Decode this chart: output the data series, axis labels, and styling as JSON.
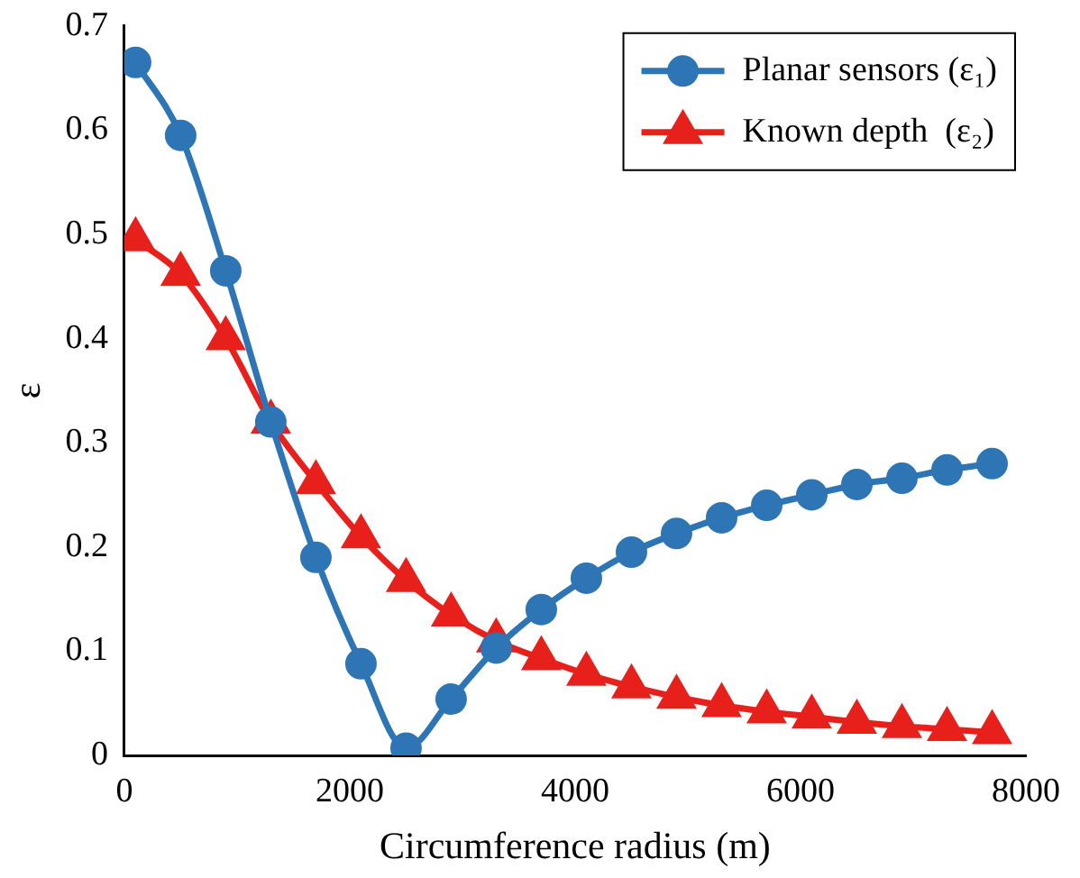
{
  "chart_data": {
    "type": "line",
    "xlabel": "Circumference radius (m)",
    "ylabel": "ε",
    "x": [
      100,
      500,
      900,
      1300,
      1700,
      2100,
      2500,
      2900,
      3300,
      3700,
      4100,
      4500,
      4900,
      5300,
      5700,
      6100,
      6500,
      6900,
      7300,
      7700
    ],
    "series": [
      {
        "name": "Planar sensors (ε₁)",
        "color": "#2e75b6",
        "marker": "circle",
        "values": [
          0.665,
          0.595,
          0.465,
          0.32,
          0.19,
          0.088,
          0.007,
          0.054,
          0.103,
          0.14,
          0.17,
          0.195,
          0.213,
          0.228,
          0.24,
          0.25,
          0.26,
          0.266,
          0.274,
          0.28
        ]
      },
      {
        "name": "Known depth  (ε₂)",
        "color": "#e8201c",
        "marker": "triangle",
        "values": [
          0.495,
          0.462,
          0.4,
          0.32,
          0.262,
          0.21,
          0.168,
          0.135,
          0.11,
          0.093,
          0.078,
          0.066,
          0.056,
          0.048,
          0.042,
          0.037,
          0.032,
          0.028,
          0.025,
          0.022
        ]
      }
    ],
    "xlim": [
      0,
      8000
    ],
    "xticks": [
      0,
      2000,
      4000,
      6000,
      8000
    ],
    "ylim": [
      0,
      0.7
    ],
    "yticks": [
      0,
      0.1,
      0.2,
      0.3,
      0.4,
      0.5,
      0.6,
      0.7
    ],
    "grid": false,
    "legend": "top right"
  }
}
